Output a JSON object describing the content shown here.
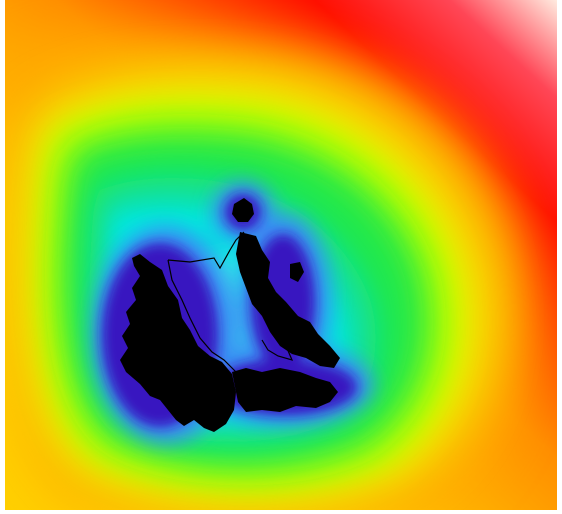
{
  "map": {
    "kind": "distance-heatmap",
    "colormap": [
      "#000000",
      "#3018c8",
      "#4a7cf0",
      "#00e8e8",
      "#00e060",
      "#70ff00",
      "#e8ff00",
      "#ffb000",
      "#ff2000",
      "#ffffff"
    ],
    "background_color": "#ffffff",
    "landmass_color": "#000000",
    "boundary_outline_color": "#000000",
    "legend": "none",
    "labels": "none"
  }
}
